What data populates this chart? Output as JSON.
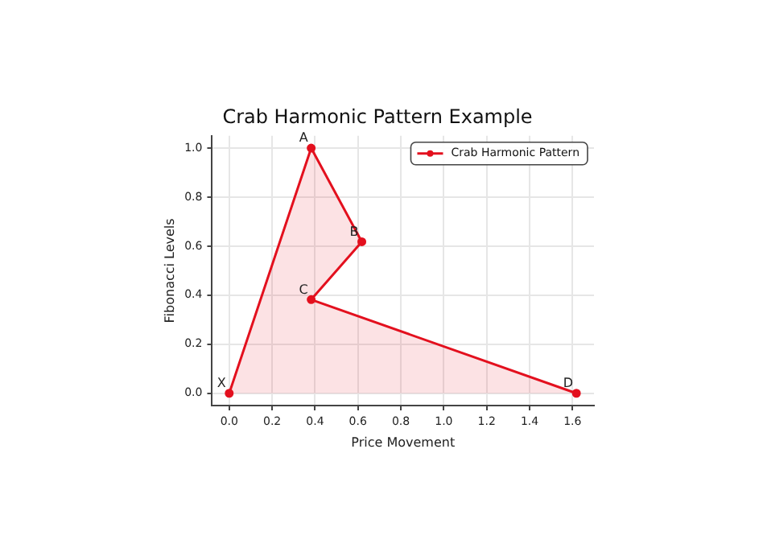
{
  "chart_data": {
    "type": "area",
    "title": "Crab Harmonic Pattern Example",
    "xlabel": "Price Movement",
    "ylabel": "Fibonacci Levels",
    "x": [
      0,
      0.382,
      0.618,
      0.382,
      1.618
    ],
    "series": [
      {
        "name": "Crab Harmonic Pattern",
        "color": "#e3101e",
        "values": [
          0,
          1,
          0.618,
          0.382,
          0
        ]
      }
    ],
    "annotations": [
      {
        "text": "X",
        "x": 0,
        "y": 0
      },
      {
        "text": "A",
        "x": 0.382,
        "y": 1
      },
      {
        "text": "B",
        "x": 0.618,
        "y": 0.618
      },
      {
        "text": "C",
        "x": 0.382,
        "y": 0.382
      },
      {
        "text": "D",
        "x": 1.618,
        "y": 0
      }
    ],
    "xlim": [
      -0.08,
      1.7
    ],
    "xticks": [
      {
        "value": 0,
        "label": "0.0"
      },
      0.2,
      0.4,
      0.6,
      0.8,
      {
        "value": 1,
        "label": "1.0"
      },
      1.2,
      1.4,
      1.6
    ],
    "ylim": [
      -0.05,
      1.05
    ],
    "yticks": [
      {
        "value": 0,
        "label": "0.0"
      },
      0.2,
      0.4,
      0.6,
      0.8,
      {
        "value": 1,
        "label": "1.0"
      }
    ],
    "grid": true,
    "legend": "top right",
    "marker": "circle",
    "line_style": "solid"
  }
}
